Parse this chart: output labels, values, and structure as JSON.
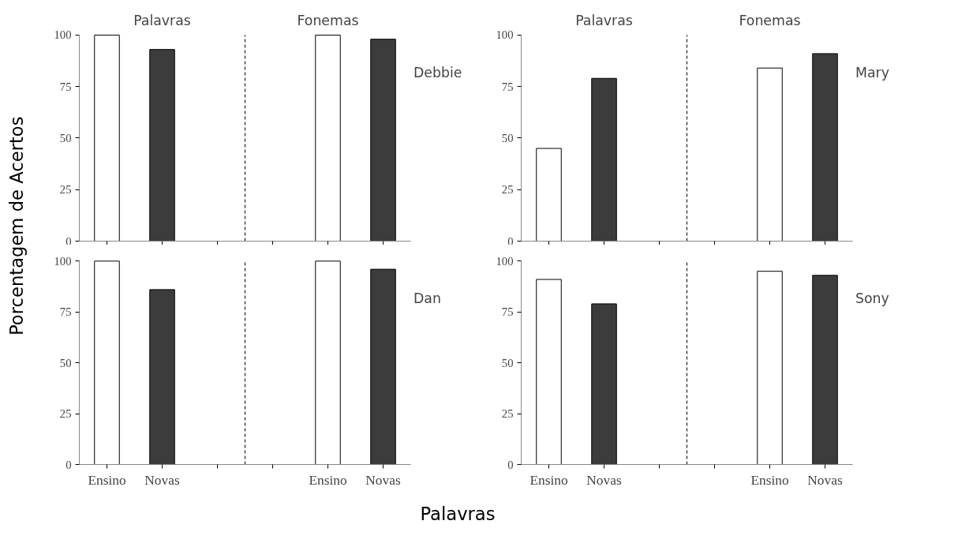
{
  "chart_data": [
    {
      "type": "bar",
      "title": "Debbie",
      "ylabel": "Porcentagem de Acertos",
      "annotations": [
        "Palavras",
        "Fonemas"
      ],
      "categories": [
        null,
        null,
        null,
        null,
        null,
        null
      ],
      "values": [
        100,
        93,
        null,
        null,
        100,
        98
      ],
      "colors": [
        "#ffffff",
        "#3c3c3c",
        "#ffffff",
        "#ffffff",
        "#ffffff",
        "#3c3c3c"
      ],
      "ylim": [
        0,
        100
      ],
      "yticks": [
        0,
        25,
        50,
        75,
        100
      ],
      "grid": false,
      "tick_labels": "y"
    },
    {
      "type": "bar",
      "title": "Mary",
      "annotations": [
        "Palavras",
        "Fonemas"
      ],
      "categories": [
        null,
        null,
        null,
        null,
        null,
        null
      ],
      "values": [
        45,
        79,
        null,
        null,
        84,
        91
      ],
      "colors": [
        "#ffffff",
        "#3c3c3c",
        "#ffffff",
        "#ffffff",
        "#ffffff",
        "#3c3c3c"
      ],
      "ylim": [
        0,
        100
      ],
      "yticks": [
        0,
        25,
        50,
        75,
        100
      ],
      "grid": false,
      "tick_labels": "y"
    },
    {
      "type": "bar",
      "title": "Dan",
      "xlabel": "Palavras",
      "categories": [
        "Ensino",
        "Novas",
        null,
        null,
        "Ensino",
        "Novas"
      ],
      "values": [
        100,
        86,
        null,
        null,
        100,
        96
      ],
      "colors": [
        "#ffffff",
        "#3c3c3c",
        "#ffffff",
        "#ffffff",
        "#ffffff",
        "#3c3c3c"
      ],
      "ylim": [
        0,
        100
      ],
      "yticks": [
        0,
        25,
        50,
        75,
        100
      ],
      "grid": false
    },
    {
      "type": "bar",
      "title": "Sony",
      "categories": [
        "Ensino",
        "Novas",
        null,
        null,
        "Ensino",
        "Novas"
      ],
      "values": [
        91,
        79,
        null,
        null,
        95,
        93
      ],
      "colors": [
        "#ffffff",
        "#3c3c3c",
        "#ffffff",
        "#ffffff",
        "#ffffff",
        "#3c3c3c"
      ],
      "ylim": [
        0,
        100
      ],
      "yticks": [
        0,
        25,
        50,
        75,
        100
      ],
      "grid": false
    }
  ]
}
